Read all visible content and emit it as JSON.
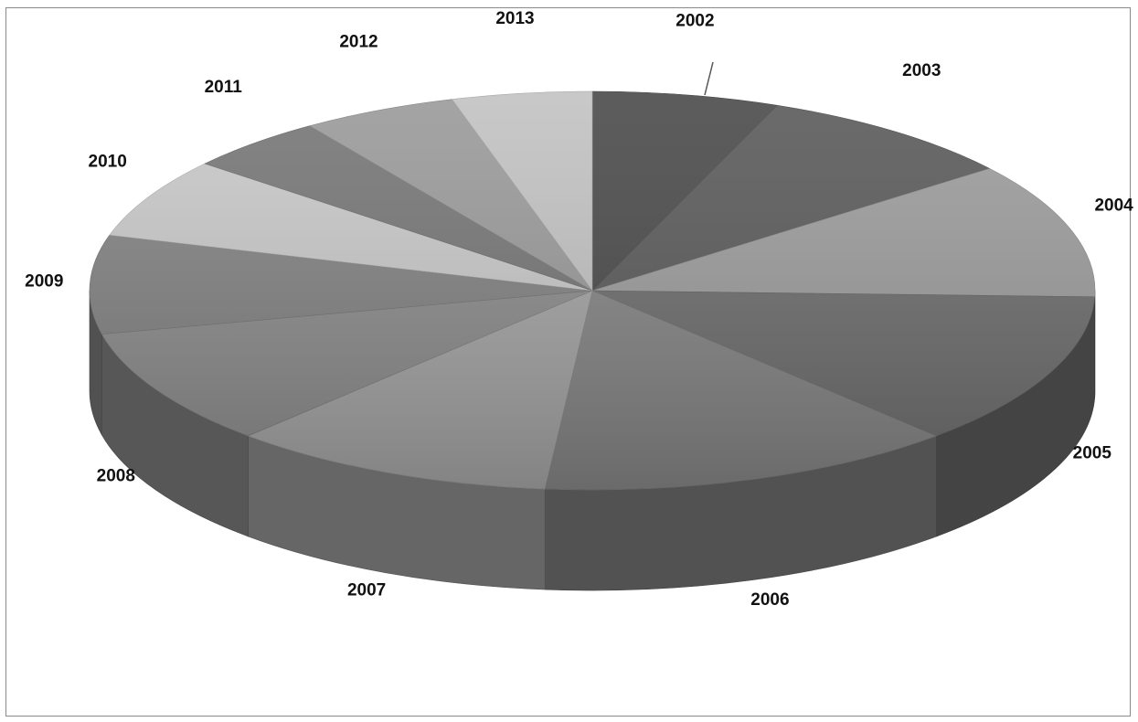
{
  "chart_data": {
    "type": "pie",
    "style": "3d-exploded-none",
    "title": "",
    "labels": [
      "2002",
      "2003",
      "2004",
      "2005",
      "2006",
      "2007",
      "2008",
      "2009",
      "2010",
      "2011",
      "2012",
      "2013"
    ],
    "values": [
      6.0,
      8.5,
      11.0,
      12.5,
      13.5,
      10.5,
      9.5,
      8.0,
      6.5,
      4.5,
      5.0,
      4.5
    ],
    "colors": [
      "#4a4a4a",
      "#5a5a5a",
      "#9c9c9c",
      "#6e6e6e",
      "#858585",
      "#a4a4a4",
      "#8c8c8c",
      "#828282",
      "#c8c8c8",
      "#767676",
      "#9a9a9a",
      "#c2c2c2"
    ],
    "legend": "none",
    "data_labels": "category names outside slices"
  }
}
